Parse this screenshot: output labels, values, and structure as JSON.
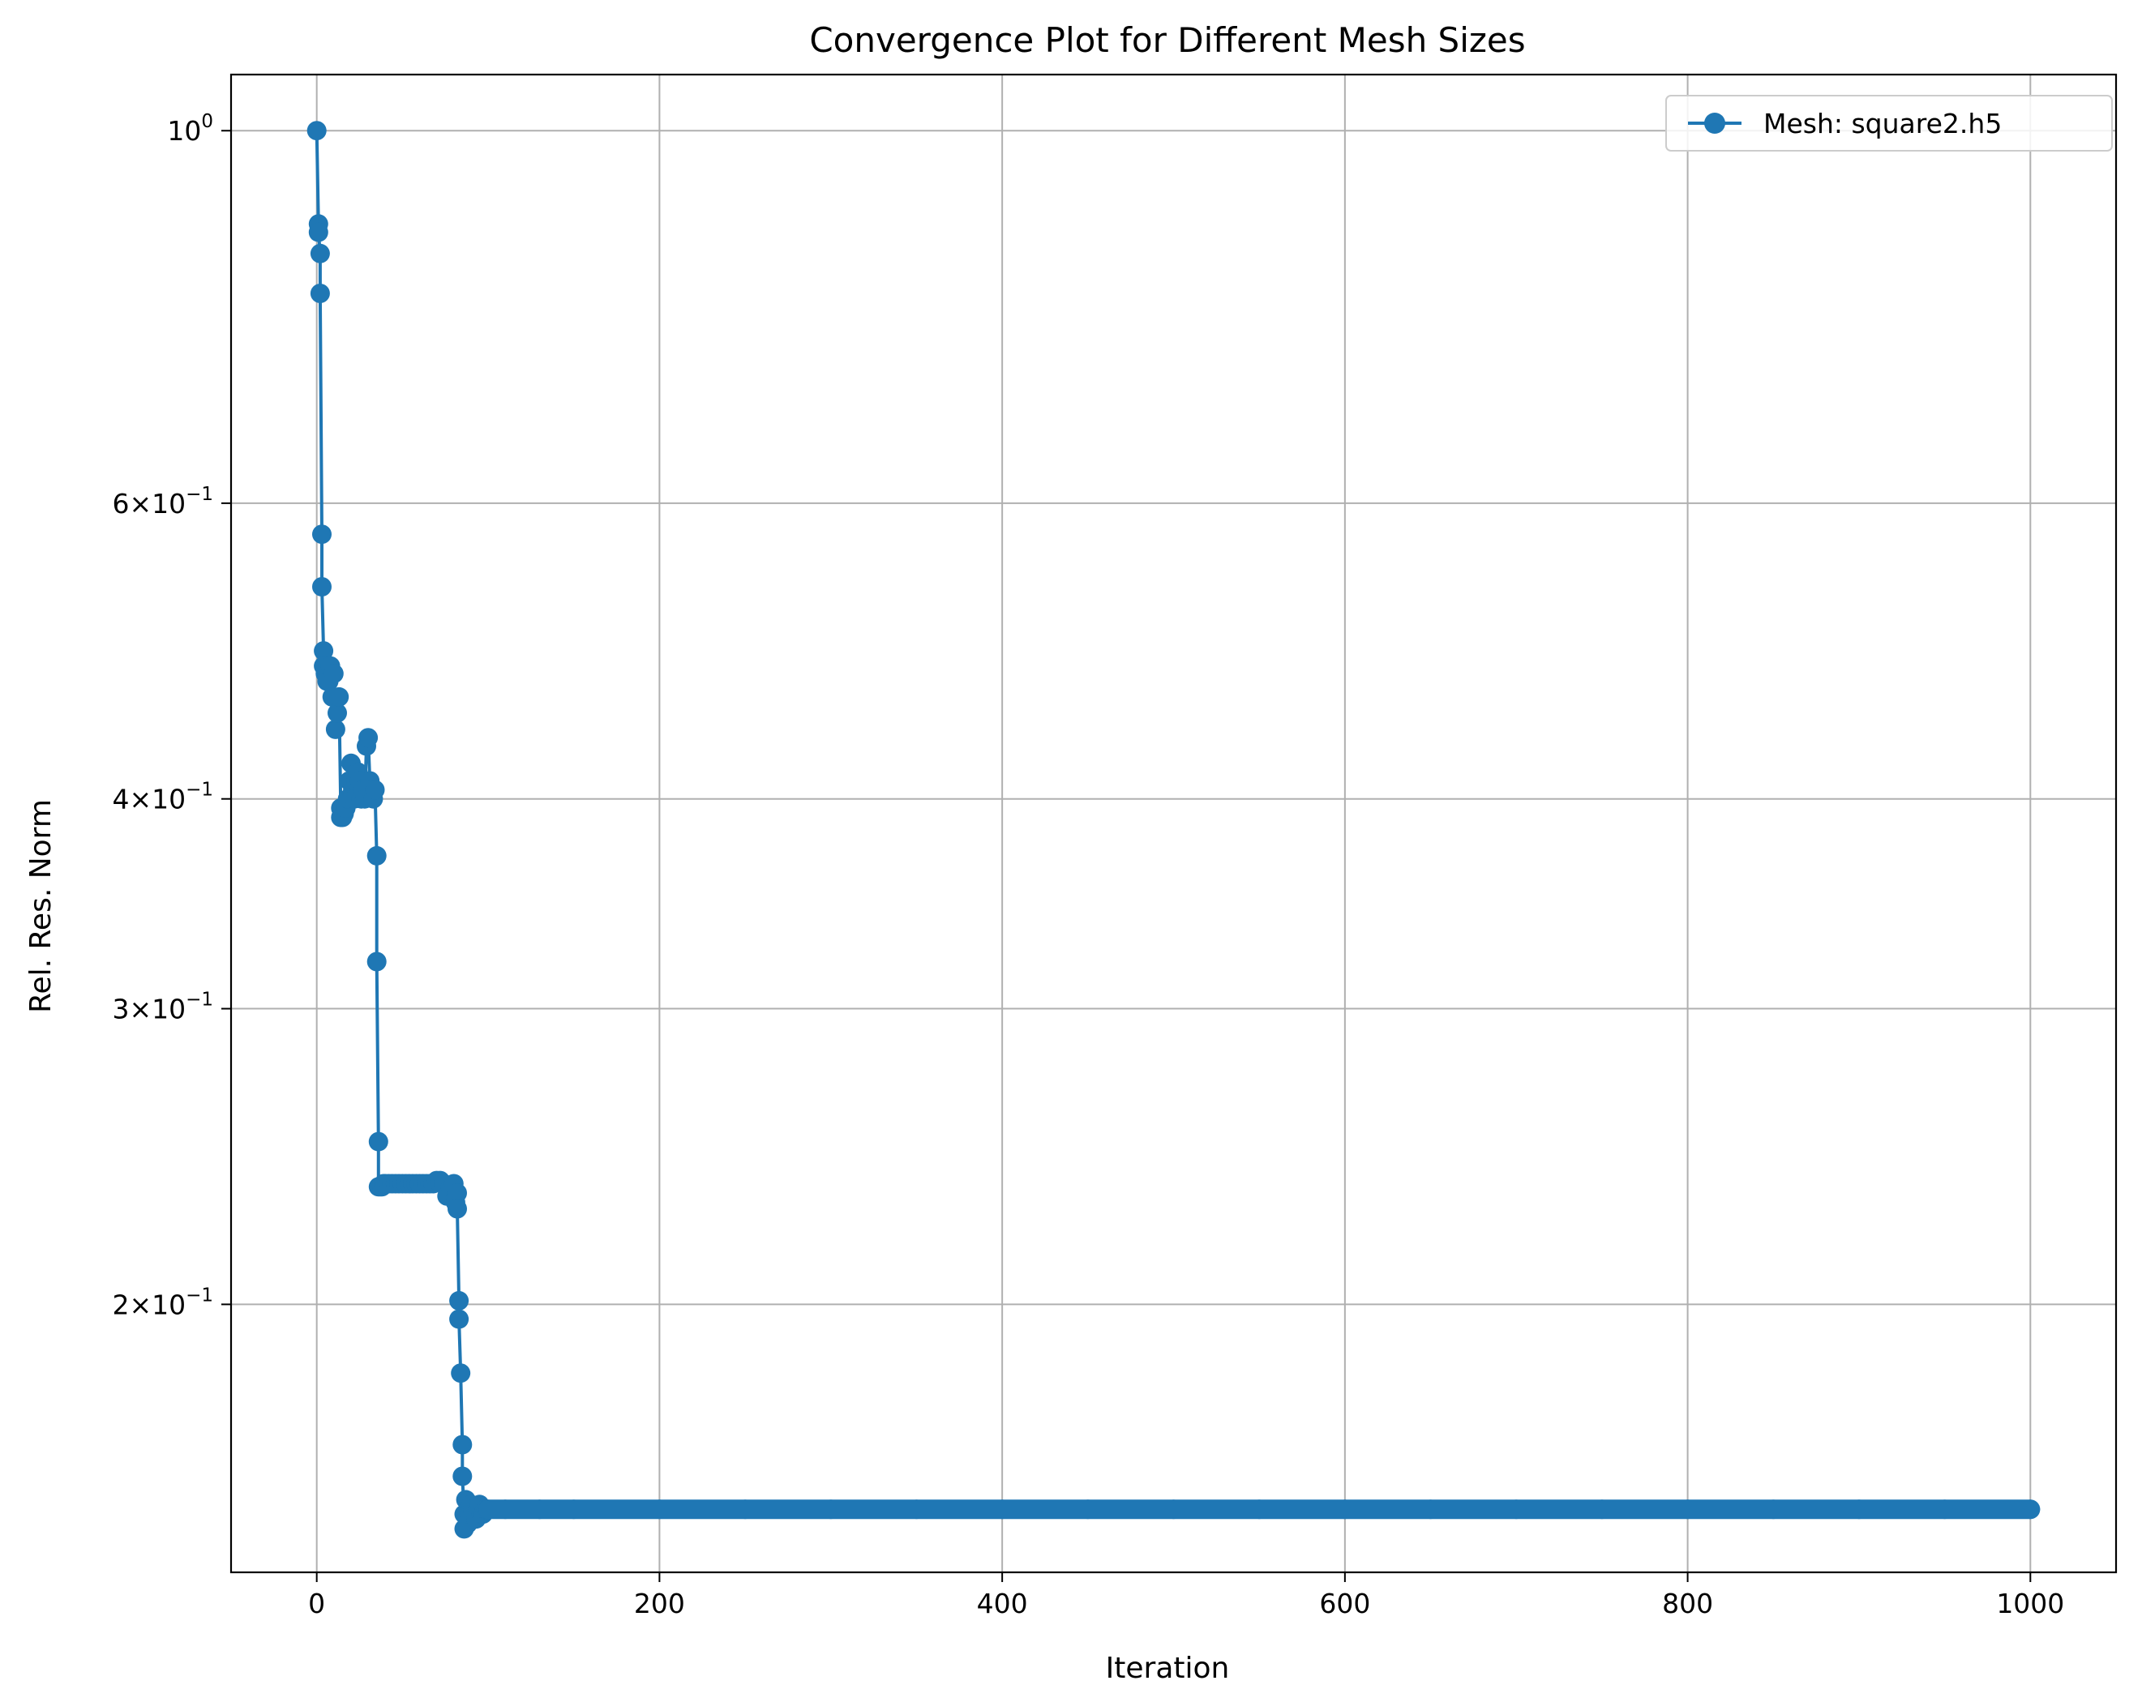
{
  "chart_data": {
    "type": "line",
    "title": "Convergence Plot for Different Mesh Sizes",
    "xlabel": "Iteration",
    "ylabel": "Rel. Res. Norm",
    "xlim": [
      -50,
      1050
    ],
    "ylim": [
      0.1385,
      1.08
    ],
    "yscale": "log",
    "grid": true,
    "legend_position": "top-right",
    "x_ticks": [
      {
        "value": 0,
        "label": "0"
      },
      {
        "value": 200,
        "label": "200"
      },
      {
        "value": 400,
        "label": "400"
      },
      {
        "value": 600,
        "label": "600"
      },
      {
        "value": 800,
        "label": "800"
      },
      {
        "value": 1000,
        "label": "1000"
      }
    ],
    "y_ticks": [
      {
        "value": 1.0,
        "base": "10",
        "exp": "0"
      },
      {
        "value": 0.6,
        "base": "6×10",
        "exp": "−1"
      },
      {
        "value": 0.4,
        "base": "4×10",
        "exp": "−1"
      },
      {
        "value": 0.3,
        "base": "3×10",
        "exp": "−1"
      },
      {
        "value": 0.2,
        "base": "2×10",
        "exp": "−1"
      }
    ],
    "series": [
      {
        "name": "Mesh: square2.h5",
        "color": "#1f77b4",
        "marker": "circle",
        "x": [
          0,
          1,
          1,
          2,
          2,
          3,
          3,
          4,
          4,
          5,
          6,
          7,
          8,
          9,
          10,
          11,
          12,
          13,
          14,
          14,
          15,
          16,
          17,
          18,
          19,
          20,
          21,
          22,
          23,
          24,
          25,
          26,
          27,
          28,
          29,
          30,
          31,
          32,
          33,
          34,
          35,
          35,
          36,
          36,
          37,
          38,
          39,
          40,
          42,
          44,
          46,
          48,
          50,
          52,
          54,
          56,
          58,
          60,
          62,
          64,
          66,
          68,
          70,
          72,
          74,
          76,
          78,
          80,
          81,
          82,
          82,
          83,
          83,
          84,
          85,
          85,
          86,
          86,
          87,
          88,
          89,
          90,
          91,
          92,
          93,
          94,
          95,
          96,
          97,
          98,
          99,
          100,
          110,
          130,
          150,
          200,
          250,
          300,
          350,
          400,
          450,
          500,
          550,
          600,
          650,
          700,
          750,
          800,
          850,
          900,
          950,
          1000
        ],
        "y": [
          1.0,
          0.88,
          0.87,
          0.845,
          0.8,
          0.575,
          0.535,
          0.49,
          0.48,
          0.475,
          0.47,
          0.47,
          0.48,
          0.46,
          0.475,
          0.44,
          0.45,
          0.46,
          0.395,
          0.39,
          0.39,
          0.392,
          0.395,
          0.4,
          0.41,
          0.42,
          0.405,
          0.4,
          0.41,
          0.415,
          0.41,
          0.4,
          0.405,
          0.4,
          0.43,
          0.435,
          0.41,
          0.405,
          0.4,
          0.405,
          0.37,
          0.32,
          0.25,
          0.235,
          0.235,
          0.235,
          0.236,
          0.236,
          0.236,
          0.236,
          0.236,
          0.236,
          0.236,
          0.236,
          0.236,
          0.236,
          0.236,
          0.236,
          0.236,
          0.236,
          0.236,
          0.236,
          0.237,
          0.237,
          0.236,
          0.232,
          0.235,
          0.236,
          0.23,
          0.233,
          0.228,
          0.201,
          0.196,
          0.182,
          0.165,
          0.158,
          0.15,
          0.147,
          0.153,
          0.148,
          0.15,
          0.152,
          0.151,
          0.15,
          0.149,
          0.151,
          0.152,
          0.15,
          0.15,
          0.151,
          0.151,
          0.151,
          0.151,
          0.151,
          0.151,
          0.151,
          0.151,
          0.151,
          0.151,
          0.151,
          0.151,
          0.151,
          0.151,
          0.151,
          0.151,
          0.151,
          0.151,
          0.151,
          0.151,
          0.151,
          0.151,
          0.151
        ]
      }
    ]
  }
}
